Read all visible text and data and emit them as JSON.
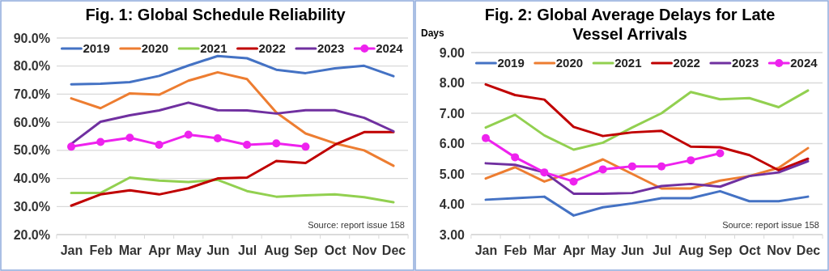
{
  "chart_data": [
    {
      "type": "line",
      "title": "Fig. 1: Global Schedule Reliability",
      "categories": [
        "Jan",
        "Feb",
        "Mar",
        "Apr",
        "May",
        "Jun",
        "Jul",
        "Aug",
        "Sep",
        "Oct",
        "Nov",
        "Dec"
      ],
      "ylim": [
        20,
        90
      ],
      "yticks": [
        {
          "value": 20,
          "label": "20.0%"
        },
        {
          "value": 30,
          "label": "30.0%"
        },
        {
          "value": 40,
          "label": "40.0%"
        },
        {
          "value": 50,
          "label": "50.0%"
        },
        {
          "value": 60,
          "label": "60.0%"
        },
        {
          "value": 70,
          "label": "70.0%"
        },
        {
          "value": 80,
          "label": "80.0%"
        },
        {
          "value": 90,
          "label": "90.0%"
        }
      ],
      "grid": "y",
      "legend": "top",
      "annotations": [
        "Source: report issue 158"
      ],
      "series": [
        {
          "name": "2019",
          "color": "#4472c4",
          "marker": "none",
          "values": [
            73.5,
            73.7,
            74.3,
            76.5,
            80.2,
            83.6,
            82.8,
            78.7,
            77.5,
            79.2,
            80.1,
            76.4
          ]
        },
        {
          "name": "2020",
          "color": "#ed7d31",
          "marker": "none",
          "values": [
            68.5,
            65,
            70.3,
            69.8,
            74.8,
            77.8,
            75.4,
            63.5,
            56,
            52.5,
            50,
            44.5
          ]
        },
        {
          "name": "2021",
          "color": "#92d050",
          "marker": "none",
          "values": [
            34.8,
            34.8,
            40.3,
            39.2,
            38.7,
            39.5,
            35.5,
            33.5,
            34,
            34.3,
            33.3,
            31.5
          ]
        },
        {
          "name": "2022",
          "color": "#c00000",
          "marker": "none",
          "values": [
            30.3,
            34.3,
            35.8,
            34.3,
            36.5,
            40,
            40.3,
            46.2,
            45.5,
            52,
            56.5,
            56.5
          ]
        },
        {
          "name": "2023",
          "color": "#7030a0",
          "marker": "none",
          "values": [
            52.3,
            60.2,
            62.5,
            64.2,
            67,
            64.3,
            64.2,
            63.1,
            64.3,
            64.3,
            61.6,
            56.8
          ]
        },
        {
          "name": "2024",
          "color": "#ee22ee",
          "marker": "circle",
          "values": [
            51.3,
            53,
            54.5,
            52,
            55.6,
            54.3,
            52,
            52.5,
            51.3,
            null,
            null,
            null
          ]
        }
      ]
    },
    {
      "type": "line",
      "title": "Fig. 2: Global Average Delays for Late Vessel Arrivals",
      "ylabel": "Days",
      "categories": [
        "Jan",
        "Feb",
        "Mar",
        "Apr",
        "May",
        "Jun",
        "Jul",
        "Aug",
        "Sep",
        "Oct",
        "Nov",
        "Dec"
      ],
      "ylim": [
        3,
        9
      ],
      "yticks": [
        {
          "value": 3,
          "label": "3.00"
        },
        {
          "value": 4,
          "label": "4.00"
        },
        {
          "value": 5,
          "label": "5.00"
        },
        {
          "value": 6,
          "label": "6.00"
        },
        {
          "value": 7,
          "label": "7.00"
        },
        {
          "value": 8,
          "label": "8.00"
        },
        {
          "value": 9,
          "label": "9.00"
        }
      ],
      "grid": "y",
      "legend": "top",
      "annotations": [
        "Source: report issue 158"
      ],
      "series": [
        {
          "name": "2019",
          "color": "#4472c4",
          "marker": "none",
          "values": [
            4.15,
            4.2,
            4.25,
            3.63,
            3.9,
            4.03,
            4.2,
            4.2,
            4.43,
            4.1,
            4.1,
            4.25
          ]
        },
        {
          "name": "2020",
          "color": "#ed7d31",
          "marker": "none",
          "values": [
            4.85,
            5.22,
            4.75,
            5.07,
            5.48,
            5.0,
            4.52,
            4.52,
            4.78,
            4.93,
            5.2,
            5.85
          ]
        },
        {
          "name": "2021",
          "color": "#92d050",
          "marker": "none",
          "values": [
            6.53,
            6.95,
            6.27,
            5.8,
            6.03,
            6.53,
            7.0,
            7.7,
            7.46,
            7.5,
            7.2,
            7.75
          ]
        },
        {
          "name": "2022",
          "color": "#c00000",
          "marker": "none",
          "values": [
            7.95,
            7.6,
            7.45,
            6.55,
            6.25,
            6.37,
            6.42,
            5.9,
            5.88,
            5.62,
            5.12,
            5.5
          ]
        },
        {
          "name": "2023",
          "color": "#7030a0",
          "marker": "none",
          "values": [
            5.35,
            5.3,
            5.05,
            4.35,
            4.35,
            4.37,
            4.6,
            4.67,
            4.58,
            4.93,
            5.05,
            5.42
          ]
        },
        {
          "name": "2024",
          "color": "#ee22ee",
          "marker": "circle",
          "values": [
            6.18,
            5.55,
            5.05,
            4.75,
            5.15,
            5.25,
            5.25,
            5.45,
            5.68,
            null,
            null,
            null
          ]
        }
      ]
    }
  ]
}
